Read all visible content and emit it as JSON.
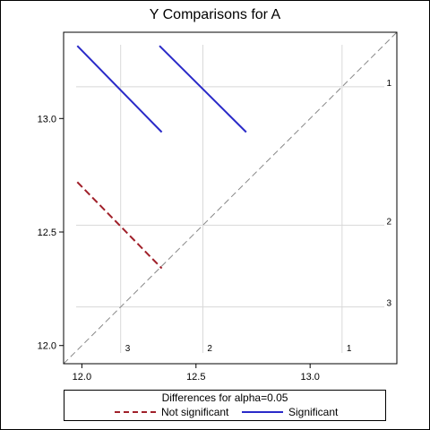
{
  "chart_data": {
    "type": "line",
    "title": "Y Comparisons for A",
    "xlabel": "",
    "ylabel": "",
    "xlim": [
      11.92,
      13.38
    ],
    "ylim": [
      11.92,
      13.38
    ],
    "x_ticks": [
      "12.0",
      "12.5",
      "13.0"
    ],
    "y_ticks": [
      "12.0",
      "12.5",
      "13.0"
    ],
    "reference_line": "y = x (gray dashed)",
    "levels": [
      {
        "label": "1",
        "mean": 13.14
      },
      {
        "label": "2",
        "mean": 12.53
      },
      {
        "label": "3",
        "mean": 12.17
      }
    ],
    "segments": [
      {
        "comparison": "1 vs 3",
        "series": "Significant",
        "x": [
          11.98,
          12.35
        ],
        "y": [
          13.32,
          12.94
        ]
      },
      {
        "comparison": "1 vs 2",
        "series": "Significant",
        "x": [
          12.34,
          12.72
        ],
        "y": [
          13.32,
          12.94
        ]
      },
      {
        "comparison": "2 vs 3",
        "series": "Not significant",
        "x": [
          11.98,
          12.35
        ],
        "y": [
          12.72,
          12.34
        ]
      }
    ],
    "legend": {
      "title": "Differences for alpha=0.05",
      "position": "bottom",
      "items": [
        {
          "name": "Not significant",
          "color": "#a0202a",
          "style": "dashed"
        },
        {
          "name": "Significant",
          "color": "#2a2ac8",
          "style": "solid"
        }
      ]
    },
    "colors": {
      "significant": "#2a2ac8",
      "not_significant": "#a0202a",
      "reference": "#888888",
      "grid": "#d8d8d8"
    }
  }
}
